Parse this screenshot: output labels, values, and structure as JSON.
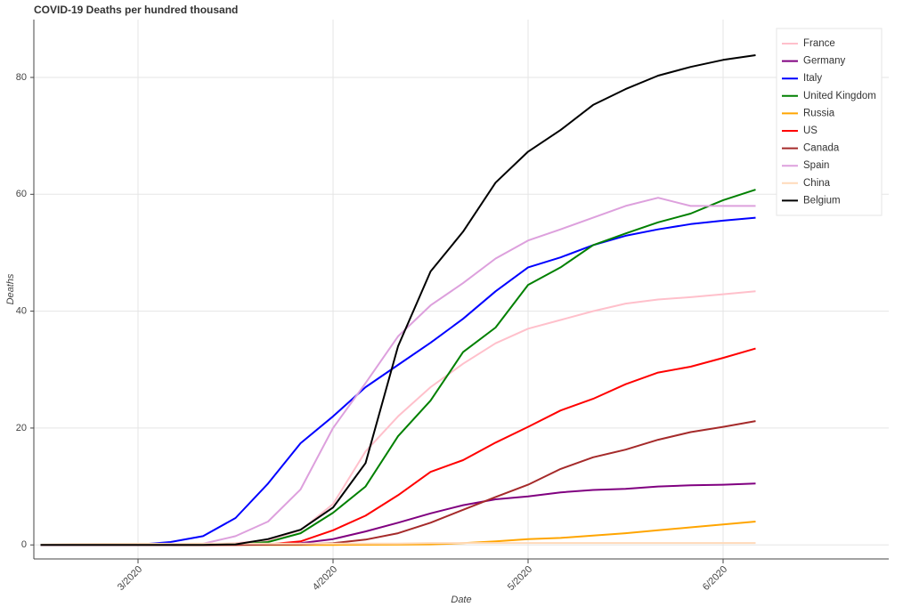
{
  "chart_data": {
    "type": "line",
    "title": "COVID-19 Deaths per hundred thousand",
    "xlabel": "Date",
    "ylabel": "Deaths",
    "categories": [
      null,
      null,
      null,
      "3/2020",
      null,
      null,
      null,
      null,
      null,
      "4/2020",
      null,
      null,
      null,
      null,
      null,
      "5/2020",
      null,
      null,
      null,
      null,
      null,
      "6/2020",
      null,
      null,
      null,
      null,
      null
    ],
    "series": [
      {
        "name": "France",
        "color": "pink",
        "values": [
          0,
          0,
          0,
          0,
          0.01,
          0.05,
          0.3,
          0.8,
          2.5,
          7,
          16,
          22,
          27,
          31,
          34.5,
          37,
          38.5,
          40,
          41.3,
          42,
          42.4,
          42.9,
          43.4,
          null,
          null,
          null,
          null
        ]
      },
      {
        "name": "Germany",
        "color": "purple",
        "values": [
          0,
          0,
          0,
          0,
          0,
          0,
          0.02,
          0.1,
          0.3,
          1,
          2.3,
          3.8,
          5.4,
          6.8,
          7.8,
          8.3,
          9,
          9.4,
          9.6,
          10,
          10.2,
          10.3,
          10.5,
          null,
          null,
          null,
          null
        ]
      },
      {
        "name": "Italy",
        "color": "blue",
        "values": [
          0,
          0,
          0,
          0.03,
          0.5,
          1.5,
          4.6,
          10.5,
          17.4,
          22,
          27,
          30.8,
          34.6,
          38.7,
          43.4,
          47.5,
          49.2,
          51.3,
          52.9,
          54,
          54.9,
          55.5,
          56,
          null,
          null,
          null,
          null
        ]
      },
      {
        "name": "United Kingdom",
        "color": "green",
        "values": [
          0,
          0,
          0,
          0,
          0,
          0.02,
          0.1,
          0.5,
          2,
          5.5,
          10,
          18.6,
          24.7,
          33,
          37.2,
          44.5,
          47.5,
          51.3,
          53.3,
          55.2,
          56.7,
          59,
          60.8,
          null,
          null,
          null,
          null
        ]
      },
      {
        "name": "Russia",
        "color": "orange",
        "values": [
          0,
          0,
          0,
          0,
          0,
          0,
          0,
          0,
          0,
          0.01,
          0.03,
          0.05,
          0.1,
          0.3,
          0.6,
          1,
          1.2,
          1.6,
          2,
          2.5,
          3,
          3.5,
          4,
          null,
          null,
          null,
          null
        ]
      },
      {
        "name": "US",
        "color": "red",
        "values": [
          0,
          0,
          0,
          0,
          0,
          0,
          0.02,
          0.1,
          0.6,
          2.5,
          5,
          8.5,
          12.5,
          14.5,
          17.5,
          20.2,
          23,
          25,
          27.5,
          29.5,
          30.5,
          32,
          33.6,
          null,
          null,
          null,
          null
        ]
      },
      {
        "name": "Canada",
        "color": "brown",
        "values": [
          0,
          0,
          0,
          0,
          0,
          0,
          0,
          0.05,
          0.1,
          0.3,
          0.9,
          2,
          3.8,
          6,
          8.2,
          10.3,
          13,
          15,
          16.3,
          18,
          19.3,
          20.2,
          21.2,
          null,
          null,
          null,
          null
        ]
      },
      {
        "name": "Spain",
        "color": "plum",
        "values": [
          0,
          0,
          0,
          0,
          0.02,
          0.2,
          1.5,
          4,
          9.5,
          20,
          27.7,
          35.7,
          41,
          44.8,
          49,
          52.1,
          54,
          56,
          58,
          59.4,
          58,
          58,
          58,
          null,
          null,
          null,
          null
        ]
      },
      {
        "name": "China",
        "color": "peachpuff",
        "values": [
          0.05,
          0.15,
          0.19,
          0.2,
          0.21,
          0.22,
          0.22,
          0.23,
          0.23,
          0.24,
          0.24,
          0.24,
          0.33,
          0.33,
          0.33,
          0.33,
          0.33,
          0.33,
          0.33,
          0.33,
          0.33,
          0.33,
          0.33,
          null,
          null,
          null,
          null
        ]
      },
      {
        "name": "Belgium",
        "color": "black",
        "values": [
          0,
          0,
          0,
          0,
          0,
          0,
          0.1,
          1,
          2.6,
          6.4,
          14,
          34,
          46.8,
          53.6,
          62,
          67.3,
          71,
          75.3,
          78,
          80.3,
          81.8,
          83,
          83.8,
          null,
          null,
          null,
          null
        ]
      }
    ],
    "ylim": [
      -2.4,
      89.9
    ],
    "yticks": [
      0,
      20,
      40,
      60,
      80
    ],
    "grid": true,
    "legend": "top-right"
  }
}
